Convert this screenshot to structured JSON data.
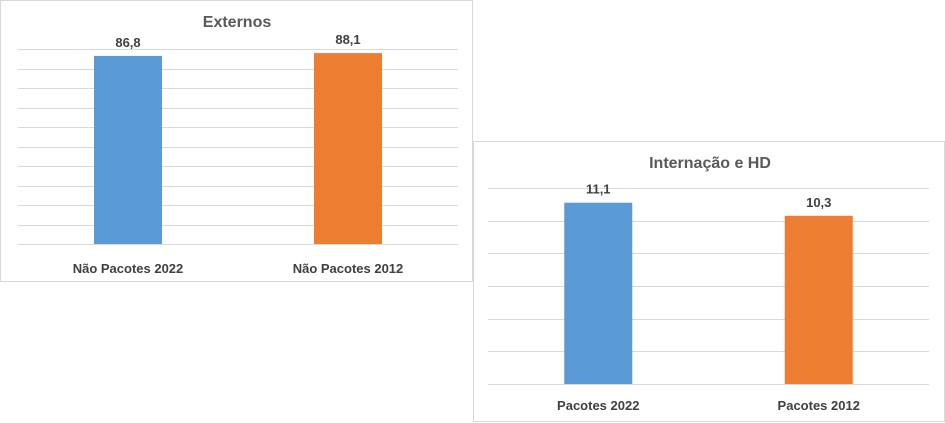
{
  "chart_data": [
    {
      "type": "bar",
      "title": "Externos",
      "categories": [
        "Não Pacotes 2022",
        "Não Pacotes 2012"
      ],
      "values": [
        86.8,
        88.1
      ],
      "value_labels": [
        "86,8",
        "88,1"
      ],
      "colors": [
        "#5b9bd5",
        "#ed7d31"
      ],
      "ylim": [
        0,
        90
      ],
      "grid": true,
      "legend": "none"
    },
    {
      "type": "bar",
      "title": "Internação e HD",
      "categories": [
        "Pacotes 2022",
        "Pacotes 2012"
      ],
      "values": [
        11.1,
        10.3
      ],
      "value_labels": [
        "11,1",
        "10,3"
      ],
      "colors": [
        "#5b9bd5",
        "#ed7d31"
      ],
      "ylim": [
        0,
        12
      ],
      "grid": true,
      "legend": "none"
    }
  ]
}
